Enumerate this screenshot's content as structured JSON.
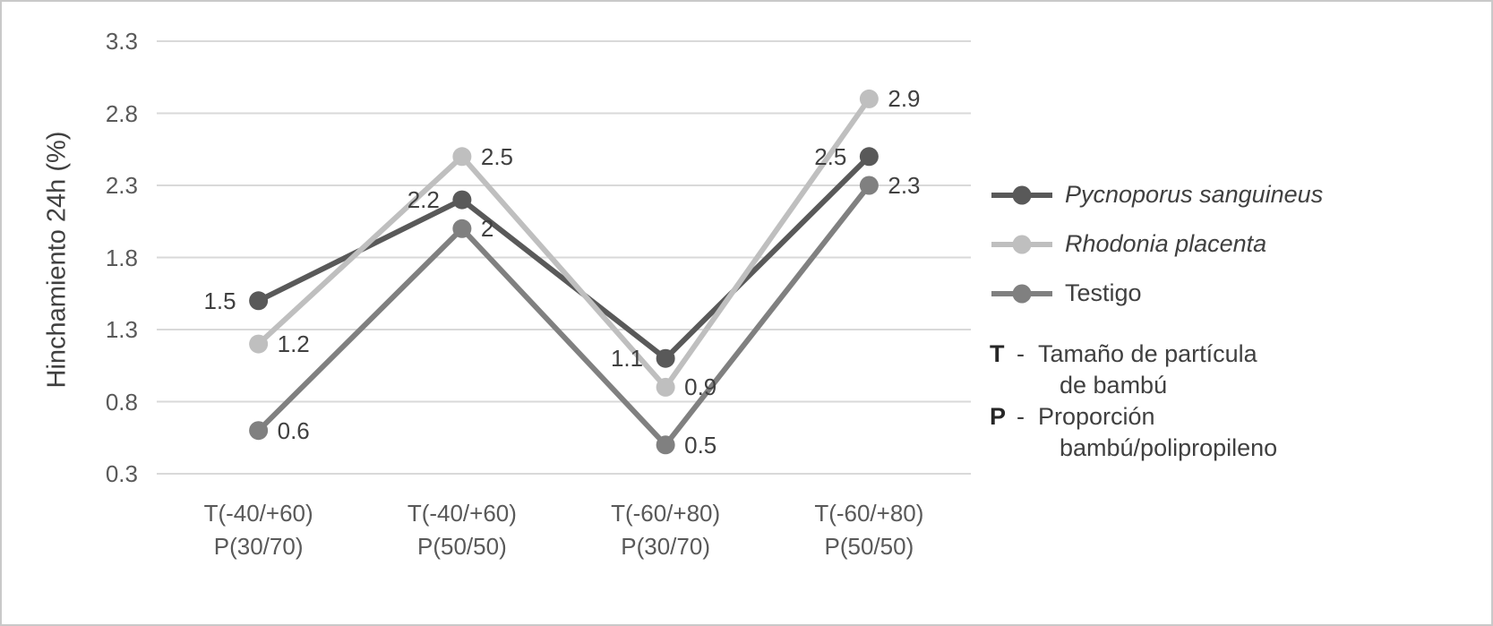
{
  "chart_data": {
    "type": "line",
    "title": "",
    "xlabel": "",
    "ylabel": "Hinchamiento 24h (%)",
    "categories": [
      "T(-40/+60)\nP(30/70)",
      "T(-40/+60)\nP(50/50)",
      "T(-60/+80)\nP(30/70)",
      "T(-60/+80)\nP(50/50)"
    ],
    "series": [
      {
        "name": "Pycnoporus sanguineus",
        "color": "#595959",
        "values": [
          1.5,
          2.2,
          1.1,
          2.5
        ],
        "labels": [
          "1.5",
          "2.2",
          "1.1",
          "2.5"
        ],
        "label_side": "left"
      },
      {
        "name": "Rhodonia placenta",
        "color": "#bfbfbf",
        "values": [
          1.2,
          2.5,
          0.9,
          2.9
        ],
        "labels": [
          "1.2",
          "2.5",
          "0.9",
          "2.9"
        ],
        "label_side": "right"
      },
      {
        "name": "Testigo",
        "color": "#808080",
        "values": [
          0.6,
          2.0,
          0.5,
          2.3
        ],
        "labels": [
          "0.6",
          "2",
          "0.5",
          "2.3"
        ],
        "label_side": "right"
      }
    ],
    "yticks": [
      3.3,
      2.8,
      2.3,
      1.8,
      1.3,
      0.8,
      0.3
    ],
    "ylim": [
      0.3,
      3.3
    ],
    "grid": true,
    "legend_position": "right",
    "colors": {
      "grid": "#d9d9d9",
      "border": "#c9c9c9",
      "axis_text": "#595959",
      "label_text": "#404040"
    }
  },
  "annotations": [
    {
      "key": "T",
      "separator": "-",
      "line1": "Tamaño de partícula",
      "line2": "de bambú"
    },
    {
      "key": "P",
      "separator": "-",
      "line1": "Proporción",
      "line2": "bambú/polipropileno"
    }
  ]
}
